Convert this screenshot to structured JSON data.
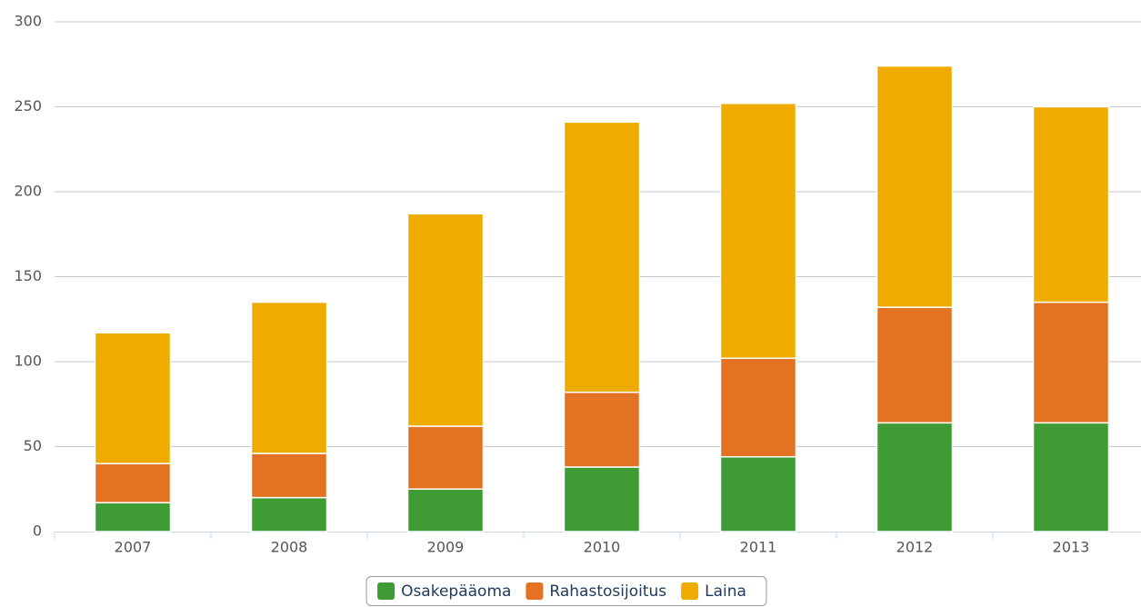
{
  "chart_data": {
    "type": "stacked-bar",
    "categories": [
      "2007",
      "2008",
      "2009",
      "2010",
      "2011",
      "2012",
      "2013"
    ],
    "series": [
      {
        "name": "Osakepääoma",
        "color": "#3f9c35",
        "values": [
          17,
          20,
          25,
          38,
          44,
          64,
          64
        ]
      },
      {
        "name": "Rahastosijoitus",
        "color": "#e37222",
        "values": [
          23,
          26,
          37,
          44,
          58,
          68,
          71
        ]
      },
      {
        "name": "Laina",
        "color": "#f0ab00",
        "values": [
          77,
          89,
          125,
          159,
          150,
          142,
          115
        ]
      }
    ],
    "ylim": [
      0,
      300
    ],
    "yticks": [
      0,
      50,
      100,
      150,
      200,
      250,
      300
    ],
    "grid": true,
    "legend": "bottom"
  }
}
